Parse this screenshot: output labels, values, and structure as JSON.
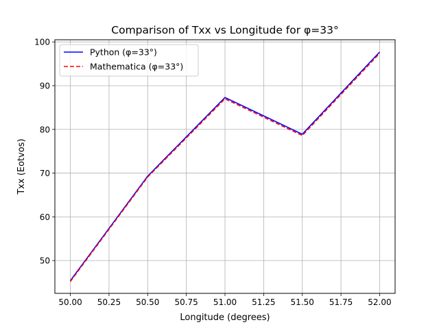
{
  "chart_data": {
    "type": "line",
    "title": "Comparison of Txx vs Longitude for φ=33°",
    "xlabel": "Longitude (degrees)",
    "ylabel": "Txx (Eotvos)",
    "xlim": [
      49.9,
      52.1
    ],
    "ylim": [
      42.5,
      100.5
    ],
    "x_ticks": [
      50.0,
      50.25,
      50.5,
      50.75,
      51.0,
      51.25,
      51.5,
      51.75,
      52.0
    ],
    "x_tick_labels": [
      "50.00",
      "50.25",
      "50.50",
      "50.75",
      "51.00",
      "51.25",
      "51.50",
      "51.75",
      "52.00"
    ],
    "y_ticks": [
      50,
      60,
      70,
      80,
      90,
      100
    ],
    "y_tick_labels": [
      "50",
      "60",
      "70",
      "80",
      "90",
      "100"
    ],
    "grid": true,
    "legend_position": "top-left",
    "x": [
      50.0,
      50.5,
      51.0,
      51.5,
      52.0
    ],
    "series": [
      {
        "name": "Python (φ=33°)",
        "color": "#0000ff",
        "style": "solid",
        "values": [
          45.4,
          69.3,
          87.3,
          78.9,
          97.7
        ]
      },
      {
        "name": "Mathematica (φ=33°)",
        "color": "#ff0000",
        "style": "dashed",
        "values": [
          45.2,
          69.1,
          87.0,
          78.6,
          97.4
        ]
      }
    ]
  }
}
